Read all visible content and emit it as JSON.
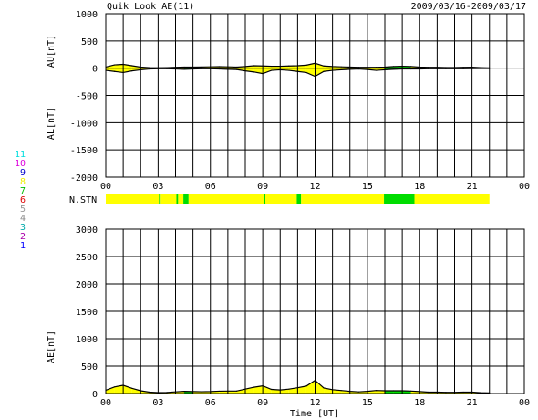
{
  "chart_data": {
    "type": "line",
    "title": "Quik Look AE(11)",
    "date_range": "2009/03/16-2009/03/17",
    "xlabel": "Time [UT]",
    "x_ticks": [
      "00",
      "03",
      "06",
      "09",
      "12",
      "15",
      "18",
      "21",
      "00"
    ],
    "x_range_hours": [
      0,
      24
    ],
    "grid": true,
    "colors": {
      "positive_fill": "#ffff00",
      "negative_fill": "#ffff00",
      "green_fill": "#00dd00",
      "station_bar_yellow": "#ffff00",
      "station_bar_green": "#00dd00",
      "line": "#000000"
    },
    "upper_panel": {
      "ylabels": [
        "AU[nT]",
        "AL[nT]"
      ],
      "ylim": [
        -2000,
        1000
      ],
      "y_ticks": [
        "1000",
        "500",
        "0",
        "-500",
        "-1000",
        "-1500",
        "-2000"
      ],
      "series": [
        {
          "name": "AU",
          "x": [
            0.0,
            0.5,
            1.0,
            1.5,
            2.0,
            2.5,
            3.0,
            3.5,
            4.0,
            4.5,
            5.0,
            5.5,
            6.0,
            6.5,
            7.0,
            7.5,
            8.0,
            8.5,
            9.0,
            9.5,
            10.0,
            10.5,
            11.0,
            11.5,
            12.0,
            12.5,
            13.0,
            13.5,
            14.0,
            14.5,
            15.0,
            15.5,
            16.0,
            16.5,
            17.0,
            17.5,
            18.0,
            18.5,
            19.0,
            19.5,
            20.0,
            20.5,
            21.0,
            21.5,
            22.0
          ],
          "values": [
            20,
            60,
            70,
            45,
            20,
            10,
            8,
            10,
            15,
            20,
            20,
            22,
            25,
            28,
            25,
            20,
            30,
            45,
            40,
            35,
            35,
            40,
            45,
            55,
            90,
            40,
            30,
            25,
            20,
            15,
            15,
            15,
            20,
            30,
            35,
            30,
            20,
            15,
            15,
            12,
            12,
            15,
            18,
            10,
            5
          ]
        },
        {
          "name": "AL",
          "x": [
            0.0,
            0.5,
            1.0,
            1.5,
            2.0,
            2.5,
            3.0,
            3.5,
            4.0,
            4.5,
            5.0,
            5.5,
            6.0,
            6.5,
            7.0,
            7.5,
            8.0,
            8.5,
            9.0,
            9.5,
            10.0,
            10.5,
            11.0,
            11.5,
            12.0,
            12.5,
            13.0,
            13.5,
            14.0,
            14.5,
            15.0,
            15.5,
            16.0,
            16.5,
            17.0,
            17.5,
            18.0,
            18.5,
            19.0,
            19.5,
            20.0,
            20.5,
            21.0,
            21.5,
            22.0
          ],
          "values": [
            -40,
            -60,
            -80,
            -50,
            -30,
            -15,
            -10,
            -10,
            -15,
            -20,
            -15,
            -10,
            -10,
            -15,
            -20,
            -25,
            -50,
            -70,
            -100,
            -40,
            -30,
            -40,
            -60,
            -80,
            -150,
            -60,
            -40,
            -30,
            -20,
            -15,
            -25,
            -40,
            -30,
            -20,
            -15,
            -15,
            -15,
            -10,
            -10,
            -10,
            -10,
            -10,
            -8,
            -5,
            -5
          ]
        }
      ]
    },
    "station_bar": {
      "label": "N.STN",
      "station_labels": [
        "11",
        "10",
        "9",
        "8",
        "7",
        "6",
        "5",
        "4",
        "3",
        "2",
        "1"
      ],
      "station_label_colors": [
        "#00dddd",
        "#dd00dd",
        "#0000cc",
        "#eeee00",
        "#00bb00",
        "#dd0000",
        "#999999",
        "#888888",
        "#00aaaa",
        "#aa00aa",
        "#0000ff"
      ],
      "coverage_end_hour": 22.0,
      "segments": [
        {
          "start": 0.0,
          "end": 3.05,
          "stations": 11
        },
        {
          "start": 3.05,
          "end": 3.15,
          "stations": 10
        },
        {
          "start": 3.15,
          "end": 4.05,
          "stations": 11
        },
        {
          "start": 4.05,
          "end": 4.15,
          "stations": 10
        },
        {
          "start": 4.15,
          "end": 4.45,
          "stations": 11
        },
        {
          "start": 4.45,
          "end": 4.75,
          "stations": 10
        },
        {
          "start": 4.75,
          "end": 9.05,
          "stations": 11
        },
        {
          "start": 9.05,
          "end": 9.15,
          "stations": 10
        },
        {
          "start": 9.15,
          "end": 10.95,
          "stations": 11
        },
        {
          "start": 10.95,
          "end": 11.2,
          "stations": 10
        },
        {
          "start": 11.2,
          "end": 15.95,
          "stations": 11
        },
        {
          "start": 15.95,
          "end": 17.7,
          "stations": 10
        },
        {
          "start": 17.7,
          "end": 22.0,
          "stations": 11
        }
      ]
    },
    "lower_panel": {
      "ylabel": "AE[nT]",
      "ylim": [
        0,
        3000
      ],
      "y_ticks": [
        "3000",
        "2500",
        "2000",
        "1500",
        "1000",
        "500",
        "0"
      ],
      "series": [
        {
          "name": "AE",
          "x": [
            0.0,
            0.5,
            1.0,
            1.5,
            2.0,
            2.5,
            3.0,
            3.5,
            4.0,
            4.5,
            5.0,
            5.5,
            6.0,
            6.5,
            7.0,
            7.5,
            8.0,
            8.5,
            9.0,
            9.5,
            10.0,
            10.5,
            11.0,
            11.5,
            12.0,
            12.5,
            13.0,
            13.5,
            14.0,
            14.5,
            15.0,
            15.5,
            16.0,
            16.5,
            17.0,
            17.5,
            18.0,
            18.5,
            19.0,
            19.5,
            20.0,
            20.5,
            21.0,
            21.5,
            22.0
          ],
          "values": [
            60,
            120,
            150,
            95,
            50,
            25,
            18,
            20,
            30,
            40,
            35,
            32,
            35,
            43,
            45,
            45,
            80,
            115,
            140,
            75,
            65,
            80,
            105,
            135,
            240,
            100,
            70,
            55,
            40,
            30,
            40,
            55,
            50,
            50,
            50,
            45,
            35,
            25,
            25,
            22,
            22,
            25,
            26,
            15,
            10
          ]
        }
      ]
    }
  }
}
